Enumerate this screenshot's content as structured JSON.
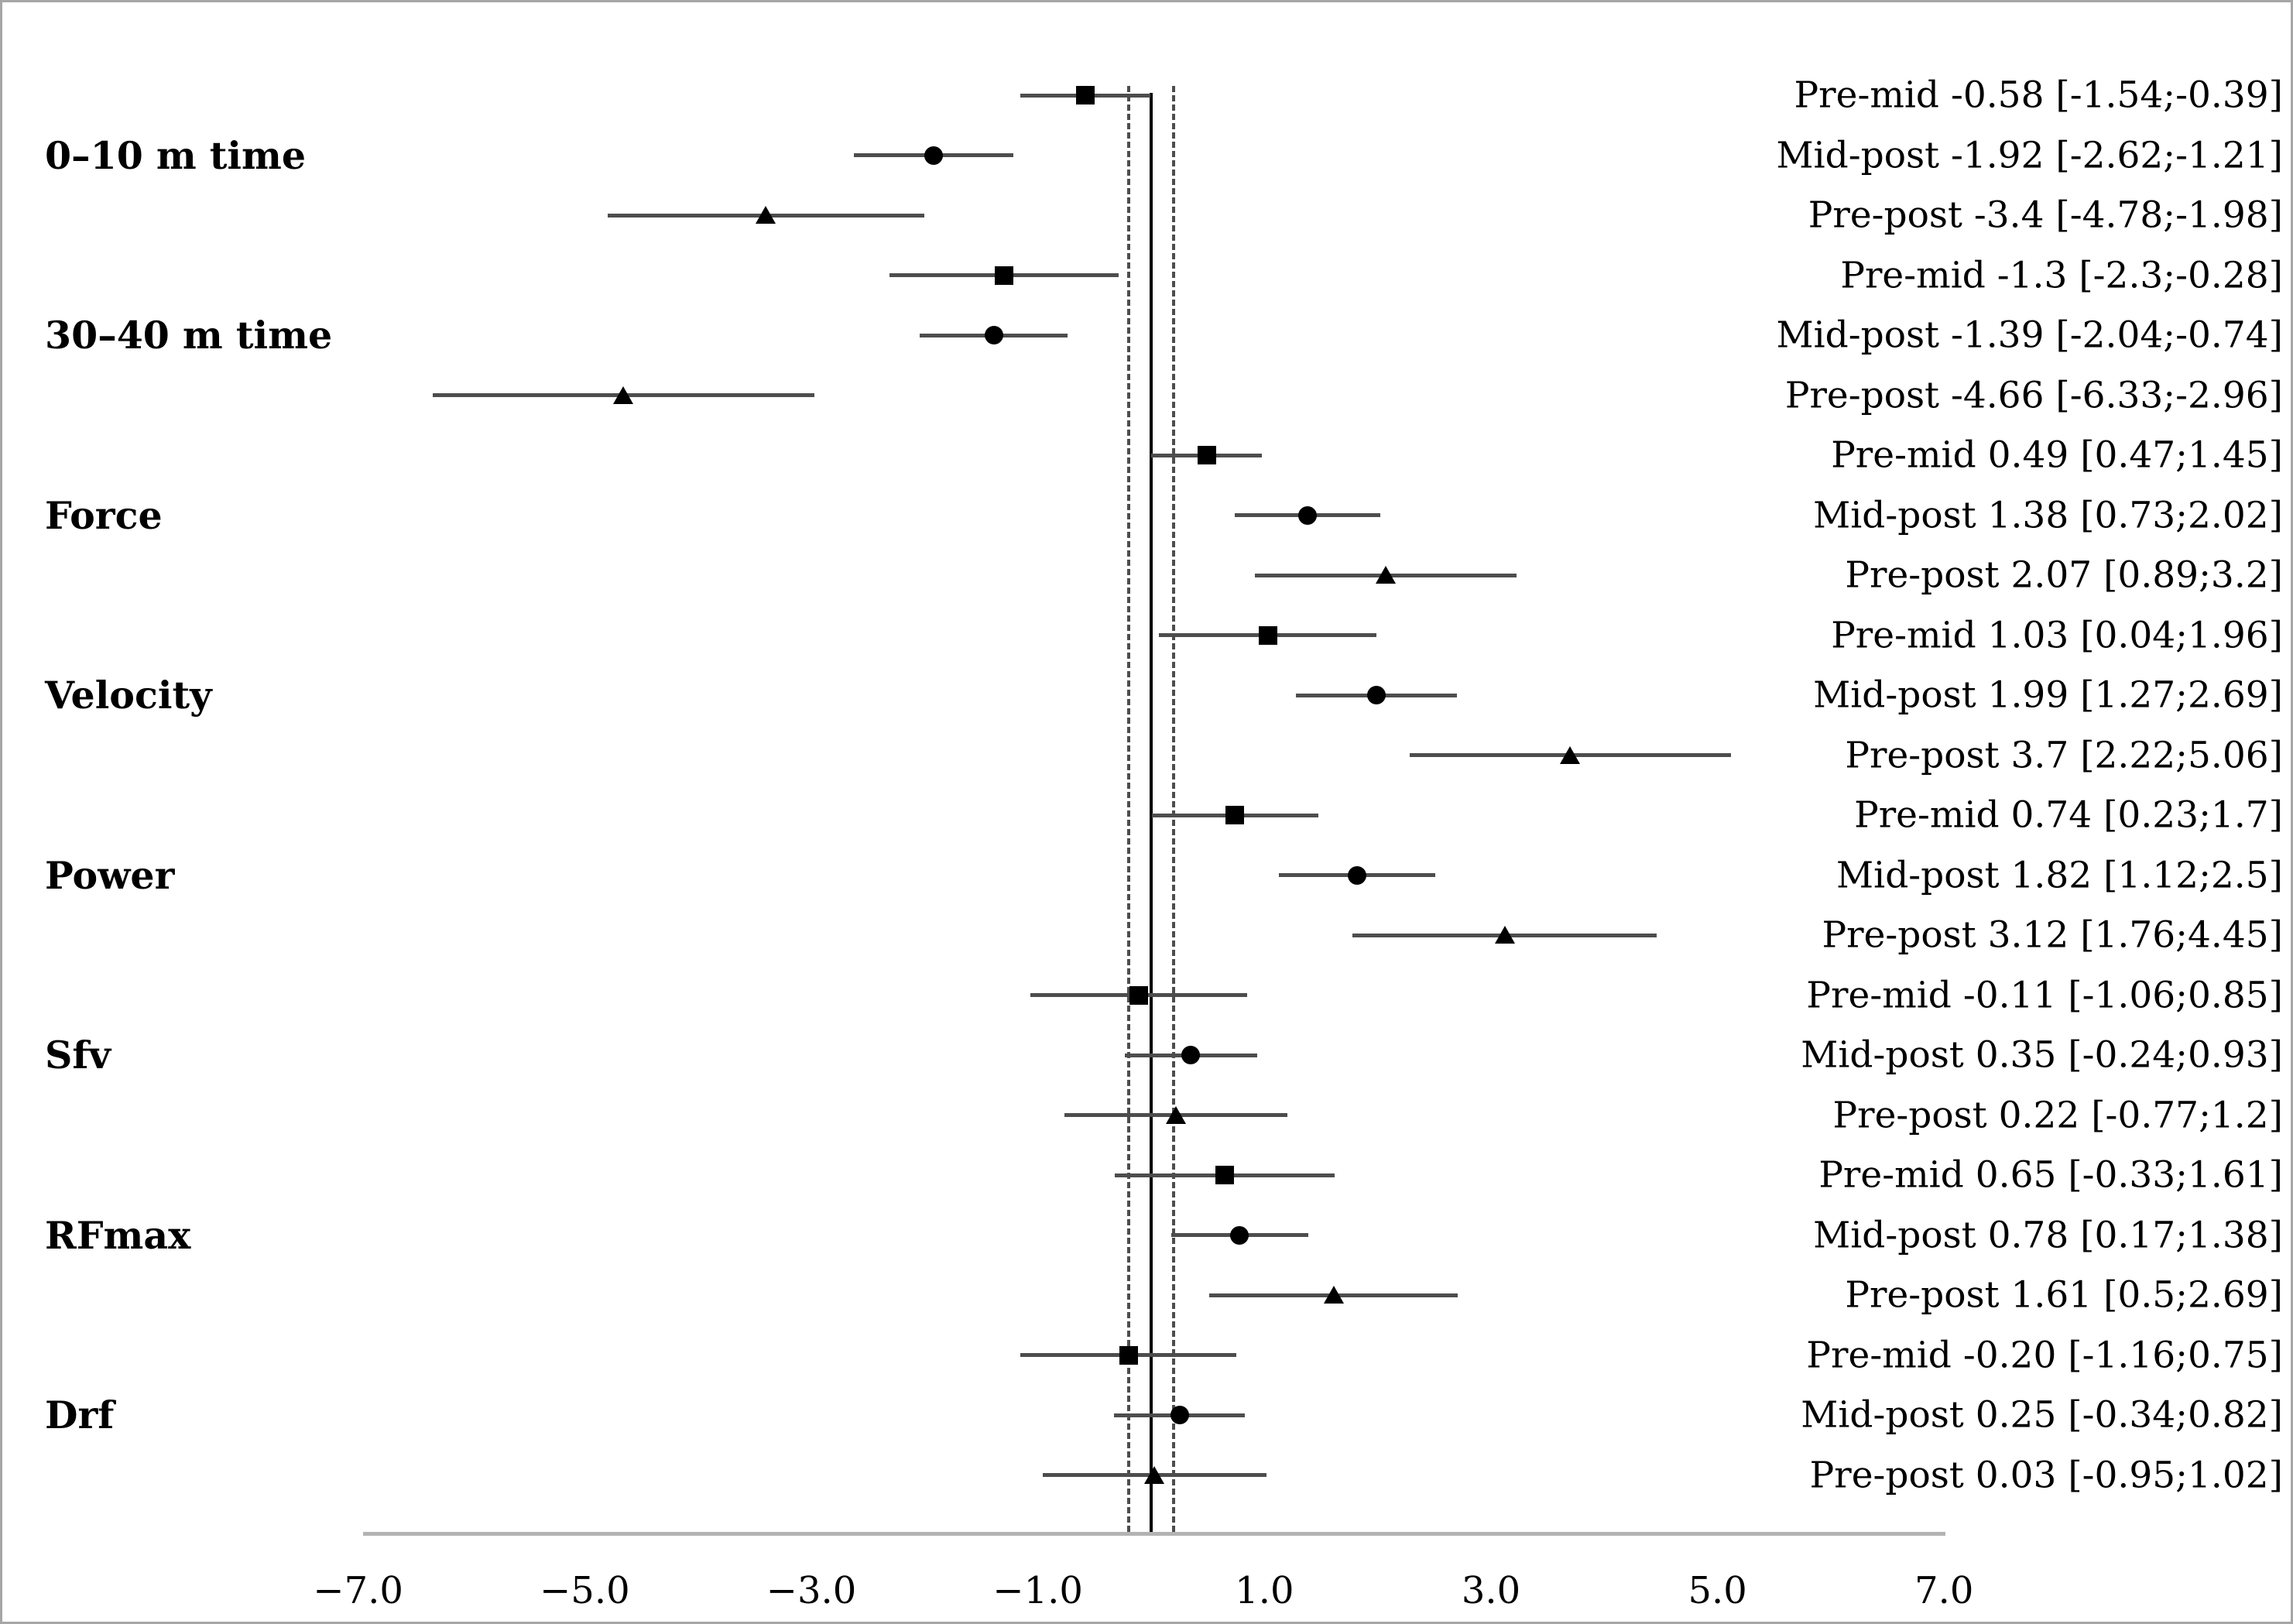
{
  "figure_type": "forest-plot",
  "colors": {
    "background": "#ffffff",
    "border": "#a6a6a6",
    "marker": "#000000",
    "ci_line": "#4d4d4d",
    "zero_line": "#000000",
    "dashed_line": "#4d4d4d",
    "axis_line": "#b3b3b3",
    "text": "#000000"
  },
  "chart_data": {
    "type": "scatter",
    "subtype": "forest",
    "title": "",
    "xlabel": "",
    "ylabel": "",
    "xlim": [
      -7.8,
      7.8
    ],
    "x_ticks": [
      {
        "label": "−7.0",
        "value": -7
      },
      {
        "label": "−5.0",
        "value": -5
      },
      {
        "label": "−3.0",
        "value": -3
      },
      {
        "label": "−1.0",
        "value": -1
      },
      {
        "label": "1.0",
        "value": 1
      },
      {
        "label": "3.0",
        "value": 3
      },
      {
        "label": "5.0",
        "value": 5
      },
      {
        "label": "7.0",
        "value": 7
      }
    ],
    "reference_lines": {
      "zero": 0,
      "dashed": [
        -0.2,
        0.2
      ]
    },
    "marker_legend": {
      "Pre-mid": "square",
      "Mid-post": "circle",
      "Pre-post": "triangle"
    },
    "groups": [
      "0–10 m time",
      "30–40 m time",
      "Force",
      "Velocity",
      "Power",
      "Sfv",
      "RFmax",
      "Drf"
    ],
    "rows": [
      {
        "group": "0–10 m time",
        "comparison": "Pre-mid",
        "marker": "square",
        "point": -0.58,
        "ci_lo": -1.54,
        "ci_hi": -0.39,
        "text": "Pre-mid -0.58 [-1.54;-0.39]"
      },
      {
        "group": "0–10 m time",
        "comparison": "Mid-post",
        "marker": "circle",
        "point": -1.92,
        "ci_lo": -2.62,
        "ci_hi": -1.21,
        "text": "Mid-post -1.92 [-2.62;-1.21]"
      },
      {
        "group": "0–10 m time",
        "comparison": "Pre-post",
        "marker": "triangle",
        "point": -3.4,
        "ci_lo": -4.78,
        "ci_hi": -1.98,
        "text": "Pre-post -3.4 [-4.78;-1.98]"
      },
      {
        "group": "30–40 m time",
        "comparison": "Pre-mid",
        "marker": "square",
        "point": -1.3,
        "ci_lo": -2.3,
        "ci_hi": -0.28,
        "text": "Pre-mid -1.3 [-2.3;-0.28]"
      },
      {
        "group": "30–40 m time",
        "comparison": "Mid-post",
        "marker": "circle",
        "point": -1.39,
        "ci_lo": -2.04,
        "ci_hi": -0.74,
        "text": "Mid-post -1.39 [-2.04;-0.74]"
      },
      {
        "group": "30–40 m time",
        "comparison": "Pre-post",
        "marker": "triangle",
        "point": -4.66,
        "ci_lo": -6.33,
        "ci_hi": -2.96,
        "text": "Pre-post -4.66 [-6.33;-2.96]"
      },
      {
        "group": "Force",
        "comparison": "Pre-mid",
        "marker": "square",
        "point": 0.49,
        "ci_lo": 0.47,
        "ci_hi": 1.45,
        "text": "Pre-mid 0.49 [0.47;1.45]"
      },
      {
        "group": "Force",
        "comparison": "Mid-post",
        "marker": "circle",
        "point": 1.38,
        "ci_lo": 0.73,
        "ci_hi": 2.02,
        "text": "Mid-post 1.38 [0.73;2.02]"
      },
      {
        "group": "Force",
        "comparison": "Pre-post",
        "marker": "triangle",
        "point": 2.07,
        "ci_lo": 0.89,
        "ci_hi": 3.2,
        "text": "Pre-post 2.07 [0.89;3.2]"
      },
      {
        "group": "Velocity",
        "comparison": "Pre-mid",
        "marker": "square",
        "point": 1.03,
        "ci_lo": 0.04,
        "ci_hi": 1.96,
        "text": "Pre-mid 1.03 [0.04;1.96]"
      },
      {
        "group": "Velocity",
        "comparison": "Mid-post",
        "marker": "circle",
        "point": 1.99,
        "ci_lo": 1.27,
        "ci_hi": 2.69,
        "text": "Mid-post 1.99 [1.27;2.69]"
      },
      {
        "group": "Velocity",
        "comparison": "Pre-post",
        "marker": "triangle",
        "point": 3.7,
        "ci_lo": 2.22,
        "ci_hi": 5.06,
        "text": "Pre-post 3.7 [2.22;5.06]"
      },
      {
        "group": "Power",
        "comparison": "Pre-mid",
        "marker": "square",
        "point": 0.74,
        "ci_lo": 0.23,
        "ci_hi": 1.7,
        "text": "Pre-mid 0.74 [0.23;1.7]"
      },
      {
        "group": "Power",
        "comparison": "Mid-post",
        "marker": "circle",
        "point": 1.82,
        "ci_lo": 1.12,
        "ci_hi": 2.5,
        "text": "Mid-post 1.82 [1.12;2.5]"
      },
      {
        "group": "Power",
        "comparison": "Pre-post",
        "marker": "triangle",
        "point": 3.12,
        "ci_lo": 1.76,
        "ci_hi": 4.45,
        "text": "Pre-post 3.12 [1.76;4.45]"
      },
      {
        "group": "Sfv",
        "comparison": "Pre-mid",
        "marker": "square",
        "point": -0.11,
        "ci_lo": -1.06,
        "ci_hi": 0.85,
        "text": "Pre-mid -0.11 [-1.06;0.85]"
      },
      {
        "group": "Sfv",
        "comparison": "Mid-post",
        "marker": "circle",
        "point": 0.35,
        "ci_lo": -0.24,
        "ci_hi": 0.93,
        "text": "Mid-post 0.35 [-0.24;0.93]"
      },
      {
        "group": "Sfv",
        "comparison": "Pre-post",
        "marker": "triangle",
        "point": 0.22,
        "ci_lo": -0.77,
        "ci_hi": 1.2,
        "text": "Pre-post 0.22 [-0.77;1.2]"
      },
      {
        "group": "RFmax",
        "comparison": "Pre-mid",
        "marker": "square",
        "point": 0.65,
        "ci_lo": -0.33,
        "ci_hi": 1.61,
        "text": "Pre-mid 0.65 [-0.33;1.61]"
      },
      {
        "group": "RFmax",
        "comparison": "Mid-post",
        "marker": "circle",
        "point": 0.78,
        "ci_lo": 0.17,
        "ci_hi": 1.38,
        "text": "Mid-post 0.78 [0.17;1.38]"
      },
      {
        "group": "RFmax",
        "comparison": "Pre-post",
        "marker": "triangle",
        "point": 1.61,
        "ci_lo": 0.5,
        "ci_hi": 2.69,
        "text": "Pre-post 1.61 [0.5;2.69]"
      },
      {
        "group": "Drf",
        "comparison": "Pre-mid",
        "marker": "square",
        "point": -0.2,
        "ci_lo": -1.16,
        "ci_hi": 0.75,
        "text": "Pre-mid -0.20 [-1.16;0.75]"
      },
      {
        "group": "Drf",
        "comparison": "Mid-post",
        "marker": "circle",
        "point": 0.25,
        "ci_lo": -0.34,
        "ci_hi": 0.82,
        "text": "Mid-post 0.25 [-0.34;0.82]"
      },
      {
        "group": "Drf",
        "comparison": "Pre-post",
        "marker": "triangle",
        "point": 0.03,
        "ci_lo": -0.95,
        "ci_hi": 1.02,
        "text": "Pre-post 0.03 [-0.95;1.02]"
      }
    ],
    "legend_position": "none",
    "grid": false,
    "note_drawn_whiskers": "whiskers are drawn symmetric: point ± (ci_hi - ci_lo)/2"
  }
}
